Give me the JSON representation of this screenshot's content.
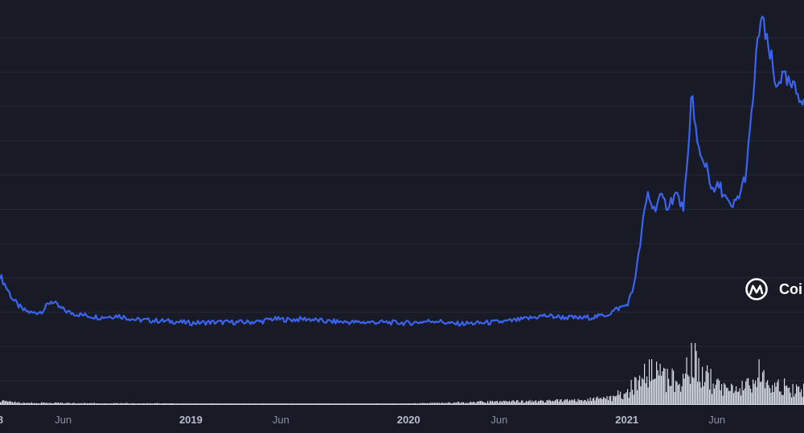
{
  "colors": {
    "background": "#181b26",
    "grid": "#252836",
    "price_line": "#3b63f0",
    "volume": "#d8dbe6",
    "tick_label": "#8b90a0",
    "year_label": "#b8bccb",
    "watermark": "#ffffff"
  },
  "watermark": {
    "icon": "coinmarketcap-logo-icon",
    "text": "Coi"
  },
  "chart_data": {
    "type": "line",
    "title": "",
    "xlabel": "",
    "ylabel": "",
    "grid": true,
    "x_range": [
      "2018-02-15",
      "2021-10-25"
    ],
    "x_ticks": [
      {
        "date": "2018-01-01",
        "label": "8",
        "bold": true
      },
      {
        "date": "2018-06-01",
        "label": "Jun",
        "bold": false
      },
      {
        "date": "2019-01-01",
        "label": "2019",
        "bold": true
      },
      {
        "date": "2019-06-01",
        "label": "Jun",
        "bold": false
      },
      {
        "date": "2020-01-01",
        "label": "2020",
        "bold": true
      },
      {
        "date": "2020-06-01",
        "label": "Jun",
        "bold": false
      },
      {
        "date": "2021-01-01",
        "label": "2021",
        "bold": true
      },
      {
        "date": "2021-06-01",
        "label": "Jun",
        "bold": false
      }
    ],
    "series": [
      {
        "kind": "price",
        "points": [
          [
            "2018-02-15",
            15.6
          ],
          [
            "2018-02-25",
            14.2
          ],
          [
            "2018-03-10",
            12.5
          ],
          [
            "2018-03-25",
            11.4
          ],
          [
            "2018-04-10",
            11.0
          ],
          [
            "2018-04-25",
            11.2
          ],
          [
            "2018-05-05",
            11.9
          ],
          [
            "2018-05-12",
            12.5
          ],
          [
            "2018-05-25",
            11.7
          ],
          [
            "2018-06-10",
            11.1
          ],
          [
            "2018-07-01",
            10.8
          ],
          [
            "2018-08-01",
            10.5
          ],
          [
            "2018-09-01",
            10.7
          ],
          [
            "2018-10-01",
            10.2
          ],
          [
            "2018-11-01",
            10.1
          ],
          [
            "2018-12-01",
            10.0
          ],
          [
            "2019-01-01",
            9.8
          ],
          [
            "2019-02-01",
            9.9
          ],
          [
            "2019-03-01",
            9.9
          ],
          [
            "2019-04-01",
            9.9
          ],
          [
            "2019-05-01",
            10.0
          ],
          [
            "2019-05-15",
            10.3
          ],
          [
            "2019-06-15",
            10.2
          ],
          [
            "2019-07-15",
            10.3
          ],
          [
            "2019-08-15",
            10.0
          ],
          [
            "2019-10-01",
            9.9
          ],
          [
            "2019-11-15",
            9.9
          ],
          [
            "2020-01-01",
            9.8
          ],
          [
            "2020-02-15",
            10.1
          ],
          [
            "2020-03-15",
            9.7
          ],
          [
            "2020-05-01",
            9.8
          ],
          [
            "2020-06-15",
            10.0
          ],
          [
            "2020-07-15",
            10.3
          ],
          [
            "2020-08-15",
            10.7
          ],
          [
            "2020-09-15",
            10.5
          ],
          [
            "2020-10-15",
            10.4
          ],
          [
            "2020-11-15",
            10.6
          ],
          [
            "2020-12-01",
            10.9
          ],
          [
            "2020-12-15",
            11.5
          ],
          [
            "2021-01-01",
            12.0
          ],
          [
            "2021-01-10",
            13.5
          ],
          [
            "2021-01-20",
            17.5
          ],
          [
            "2021-01-28",
            22.0
          ],
          [
            "2021-02-05",
            25.5
          ],
          [
            "2021-02-15",
            23.5
          ],
          [
            "2021-02-25",
            25.0
          ],
          [
            "2021-03-10",
            24.0
          ],
          [
            "2021-03-25",
            25.5
          ],
          [
            "2021-04-05",
            23.5
          ],
          [
            "2021-04-15",
            30.5
          ],
          [
            "2021-04-20",
            38.5
          ],
          [
            "2021-04-28",
            32.0
          ],
          [
            "2021-05-05",
            29.5
          ],
          [
            "2021-05-15",
            29.0
          ],
          [
            "2021-05-25",
            25.5
          ],
          [
            "2021-06-05",
            26.5
          ],
          [
            "2021-06-15",
            25.0
          ],
          [
            "2021-06-25",
            23.5
          ],
          [
            "2021-07-10",
            25.5
          ],
          [
            "2021-07-20",
            28.0
          ],
          [
            "2021-07-28",
            34.0
          ],
          [
            "2021-08-05",
            41.0
          ],
          [
            "2021-08-10",
            45.0
          ],
          [
            "2021-08-15",
            47.0
          ],
          [
            "2021-08-22",
            44.0
          ],
          [
            "2021-09-01",
            41.5
          ],
          [
            "2021-09-07",
            38.0
          ],
          [
            "2021-09-12",
            39.5
          ],
          [
            "2021-09-20",
            39.5
          ],
          [
            "2021-10-01",
            38.5
          ],
          [
            "2021-10-10",
            38.0
          ],
          [
            "2021-10-15",
            37.5
          ],
          [
            "2021-10-25",
            37.0
          ]
        ]
      },
      {
        "kind": "volume",
        "points": [
          [
            "2018-02-15",
            0.06
          ],
          [
            "2018-03-15",
            0.03
          ],
          [
            "2018-06-01",
            0.02
          ],
          [
            "2019-01-01",
            0.01
          ],
          [
            "2019-06-01",
            0.01
          ],
          [
            "2020-01-01",
            0.01
          ],
          [
            "2020-06-01",
            0.05
          ],
          [
            "2020-10-01",
            0.07
          ],
          [
            "2020-12-01",
            0.12
          ],
          [
            "2021-01-01",
            0.25
          ],
          [
            "2021-01-25",
            0.55
          ],
          [
            "2021-02-05",
            0.75
          ],
          [
            "2021-02-15",
            0.95
          ],
          [
            "2021-02-20",
            0.6
          ],
          [
            "2021-03-10",
            0.5
          ],
          [
            "2021-03-25",
            0.55
          ],
          [
            "2021-04-15",
            0.65
          ],
          [
            "2021-04-20",
            0.9
          ],
          [
            "2021-05-01",
            0.75
          ],
          [
            "2021-05-15",
            0.55
          ],
          [
            "2021-06-01",
            0.35
          ],
          [
            "2021-07-01",
            0.3
          ],
          [
            "2021-07-20",
            0.4
          ],
          [
            "2021-08-05",
            0.55
          ],
          [
            "2021-08-15",
            0.65
          ],
          [
            "2021-08-25",
            0.5
          ],
          [
            "2021-09-10",
            0.4
          ],
          [
            "2021-10-01",
            0.3
          ],
          [
            "2021-10-25",
            0.28
          ]
        ]
      }
    ]
  }
}
